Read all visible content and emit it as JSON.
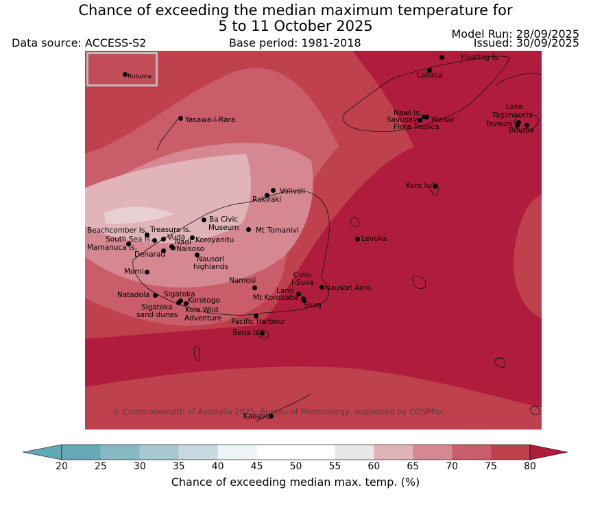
{
  "title": {
    "line1": "Chance of exceeding the median maximum temperature for",
    "line2": "5 to 11 October 2025"
  },
  "data_source": "Data source: ACCESS-S2",
  "base_period": "Base period: 1981-2018",
  "model_run": "Model Run: 28/09/2025",
  "issued": "Issued: 30/09/2025",
  "copyright": "© Commonwealth of Australia 2025, Bureau of Meteorology, supported by COSPPac",
  "inset": {
    "label": "Rotuma"
  },
  "places": [
    {
      "name": "Floating Is."
    },
    {
      "name": "Labasa"
    },
    {
      "name": "Nawi Is."
    },
    {
      "name": "Savusavu"
    },
    {
      "name": "Waisoi"
    },
    {
      "name": "Flora Tropica"
    },
    {
      "name": "Lake"
    },
    {
      "name": "Tagimaucia"
    },
    {
      "name": "Taveuni"
    },
    {
      "name": "Bouma"
    },
    {
      "name": "Yasawa-I-Rara"
    },
    {
      "name": "Koro Is."
    },
    {
      "name": "Volivoli"
    },
    {
      "name": "Rakiraki"
    },
    {
      "name": "Ba Civic"
    },
    {
      "name": "Museum"
    },
    {
      "name": "Mt Tomanivi"
    },
    {
      "name": "Levuka"
    },
    {
      "name": "Beachcomber Is."
    },
    {
      "name": "Treasure Is."
    },
    {
      "name": "South Sea Is."
    },
    {
      "name": "Vuda"
    },
    {
      "name": "Koroyanitu"
    },
    {
      "name": "Nadi"
    },
    {
      "name": "Mamanuca Is."
    },
    {
      "name": "Naisoso"
    },
    {
      "name": "Denarau"
    },
    {
      "name": "Nausori"
    },
    {
      "name": "highlands"
    },
    {
      "name": "Momi"
    },
    {
      "name": "Namosi"
    },
    {
      "name": "Colo-"
    },
    {
      "name": "I-Suva"
    },
    {
      "name": "Lami"
    },
    {
      "name": "Nausori Aero"
    },
    {
      "name": "Mt Korobaba"
    },
    {
      "name": "Suva"
    },
    {
      "name": "Natadola"
    },
    {
      "name": "Sigatoka"
    },
    {
      "name": "Korotogo"
    },
    {
      "name": "Sigatoka"
    },
    {
      "name": "sand dunes"
    },
    {
      "name": "Kula Wild"
    },
    {
      "name": "Adventure"
    },
    {
      "name": "Pacific Harbour"
    },
    {
      "name": "Beqa Is."
    },
    {
      "name": "Kadavu"
    }
  ],
  "colorbar": {
    "label": "Chance of exceeding median max. temp. (%)",
    "ticks": [
      "20",
      "25",
      "30",
      "35",
      "40",
      "45",
      "50",
      "55",
      "60",
      "65",
      "70",
      "75",
      "80"
    ],
    "colors": [
      "#5fa8b5",
      "#66aab7",
      "#88b8c3",
      "#a8c8cf",
      "#c7d8de",
      "#eef3f5",
      "#ffffff",
      "#ffffff",
      "#e8e6e6",
      "#e0b4b9",
      "#d58892",
      "#c95d69",
      "#c0414e",
      "#b01c3b"
    ],
    "under_color": "#5fa8b5",
    "over_color": "#b01c3b"
  }
}
